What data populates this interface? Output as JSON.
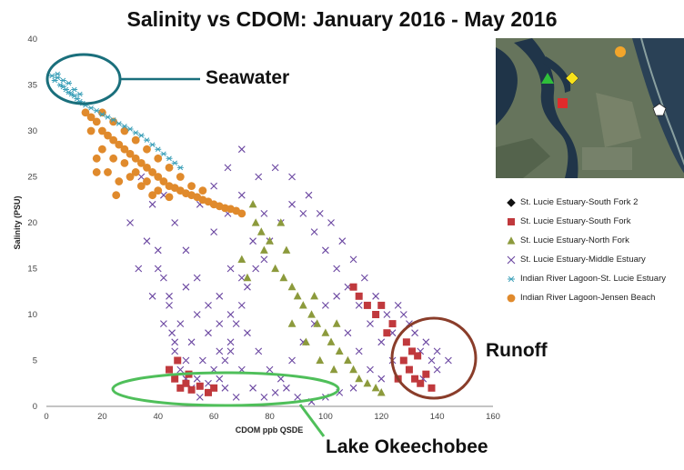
{
  "chart_data": {
    "type": "scatter",
    "title": "Salinity vs CDOM: January 2016 - May 2016",
    "xlabel": "CDOM ppb QSDE",
    "ylabel": "Salinity (PSU)",
    "xlim": [
      0,
      160
    ],
    "ylim": [
      0,
      40
    ],
    "xticks": [
      "0",
      "20",
      "40",
      "60",
      "80",
      "100",
      "120",
      "140",
      "160"
    ],
    "yticks": [
      "0",
      "5",
      "10",
      "15",
      "20",
      "25",
      "30",
      "35",
      "40"
    ],
    "grid": false,
    "legend_position": "right",
    "series": [
      {
        "name": "St. Lucie Estuary-South Fork 2",
        "marker": "diamond",
        "color": "#111111",
        "points": []
      },
      {
        "name": "St. Lucie Estuary-South Fork",
        "marker": "square",
        "color": "#c0393d",
        "points": [
          [
            46,
            3
          ],
          [
            48,
            2
          ],
          [
            50,
            2.5
          ],
          [
            52,
            1.8
          ],
          [
            55,
            2.2
          ],
          [
            58,
            1.5
          ],
          [
            60,
            2
          ],
          [
            44,
            4
          ],
          [
            47,
            5
          ],
          [
            51,
            3.5
          ],
          [
            128,
            5
          ],
          [
            130,
            4
          ],
          [
            132,
            3
          ],
          [
            134,
            2.5
          ],
          [
            131,
            6
          ],
          [
            129,
            7
          ],
          [
            133,
            5.5
          ],
          [
            136,
            3.5
          ],
          [
            126,
            3
          ],
          [
            122,
            8
          ],
          [
            118,
            10
          ],
          [
            115,
            11
          ],
          [
            112,
            12
          ],
          [
            110,
            13
          ],
          [
            124,
            9
          ],
          [
            120,
            11
          ],
          [
            138,
            2
          ]
        ]
      },
      {
        "name": "St. Lucie Estuary-North Fork",
        "marker": "triangle",
        "color": "#8c9a3c",
        "points": [
          [
            75,
            20
          ],
          [
            80,
            18
          ],
          [
            78,
            17
          ],
          [
            82,
            15
          ],
          [
            85,
            14
          ],
          [
            88,
            13
          ],
          [
            90,
            12
          ],
          [
            92,
            11
          ],
          [
            95,
            10
          ],
          [
            97,
            9
          ],
          [
            100,
            8
          ],
          [
            102,
            7
          ],
          [
            105,
            6
          ],
          [
            108,
            5
          ],
          [
            110,
            4
          ],
          [
            112,
            3
          ],
          [
            115,
            2.5
          ],
          [
            118,
            2
          ],
          [
            120,
            1.5
          ],
          [
            70,
            16
          ],
          [
            72,
            14
          ],
          [
            88,
            9
          ],
          [
            93,
            7
          ],
          [
            98,
            5
          ],
          [
            103,
            4
          ],
          [
            86,
            17
          ],
          [
            84,
            20
          ],
          [
            77,
            19
          ],
          [
            74,
            22
          ],
          [
            96,
            12
          ],
          [
            104,
            9
          ]
        ]
      },
      {
        "name": "St. Lucie Estuary-Middle Estuary",
        "marker": "x",
        "color": "#6b47a1",
        "points": [
          [
            30,
            20
          ],
          [
            34,
            25
          ],
          [
            38,
            22
          ],
          [
            40,
            17
          ],
          [
            42,
            14
          ],
          [
            44,
            11
          ],
          [
            45,
            8
          ],
          [
            46,
            6
          ],
          [
            48,
            4
          ],
          [
            50,
            3
          ],
          [
            52,
            2
          ],
          [
            55,
            1
          ],
          [
            58,
            1.5
          ],
          [
            60,
            2
          ],
          [
            62,
            3
          ],
          [
            64,
            5
          ],
          [
            66,
            7
          ],
          [
            68,
            9
          ],
          [
            70,
            11
          ],
          [
            72,
            13
          ],
          [
            75,
            15
          ],
          [
            78,
            16
          ],
          [
            80,
            18
          ],
          [
            84,
            20
          ],
          [
            88,
            22
          ],
          [
            92,
            21
          ],
          [
            96,
            19
          ],
          [
            100,
            17
          ],
          [
            104,
            15
          ],
          [
            108,
            13
          ],
          [
            112,
            11
          ],
          [
            116,
            9
          ],
          [
            120,
            7
          ],
          [
            124,
            8
          ],
          [
            128,
            10
          ],
          [
            132,
            8
          ],
          [
            136,
            7
          ],
          [
            140,
            6
          ],
          [
            144,
            5
          ],
          [
            140,
            4
          ],
          [
            135,
            3
          ],
          [
            42,
            23
          ],
          [
            46,
            20
          ],
          [
            50,
            17
          ],
          [
            54,
            14
          ],
          [
            58,
            11
          ],
          [
            62,
            9
          ],
          [
            66,
            6
          ],
          [
            70,
            4
          ],
          [
            74,
            2
          ],
          [
            78,
            1
          ],
          [
            82,
            1.5
          ],
          [
            86,
            2
          ],
          [
            90,
            1
          ],
          [
            95,
            0.5
          ],
          [
            100,
            1
          ],
          [
            105,
            1.5
          ],
          [
            110,
            2
          ],
          [
            36,
            18
          ],
          [
            40,
            15
          ],
          [
            44,
            12
          ],
          [
            48,
            9
          ],
          [
            52,
            7
          ],
          [
            56,
            5
          ],
          [
            60,
            4
          ],
          [
            64,
            2
          ],
          [
            68,
            1
          ],
          [
            55,
            22
          ],
          [
            60,
            24
          ],
          [
            65,
            26
          ],
          [
            70,
            28
          ],
          [
            60,
            19
          ],
          [
            65,
            21
          ],
          [
            70,
            23
          ],
          [
            76,
            25
          ],
          [
            82,
            26
          ],
          [
            88,
            25
          ],
          [
            94,
            23
          ],
          [
            98,
            21
          ],
          [
            102,
            20
          ],
          [
            106,
            18
          ],
          [
            110,
            16
          ],
          [
            114,
            14
          ],
          [
            118,
            12
          ],
          [
            122,
            10
          ],
          [
            126,
            11
          ],
          [
            130,
            9
          ],
          [
            134,
            6
          ],
          [
            138,
            5
          ],
          [
            33,
            15
          ],
          [
            38,
            12
          ],
          [
            42,
            9
          ],
          [
            46,
            7
          ],
          [
            50,
            5
          ],
          [
            54,
            3
          ],
          [
            58,
            2.5
          ],
          [
            62,
            6
          ],
          [
            66,
            10
          ],
          [
            70,
            14
          ],
          [
            74,
            18
          ],
          [
            78,
            21
          ],
          [
            50,
            13
          ],
          [
            54,
            10
          ],
          [
            58,
            8
          ],
          [
            62,
            12
          ],
          [
            66,
            15
          ],
          [
            72,
            8
          ],
          [
            76,
            6
          ],
          [
            80,
            4
          ],
          [
            84,
            3
          ],
          [
            88,
            5
          ],
          [
            92,
            7
          ],
          [
            96,
            9
          ],
          [
            100,
            11
          ],
          [
            104,
            12
          ],
          [
            108,
            8
          ],
          [
            112,
            6
          ],
          [
            116,
            4
          ],
          [
            120,
            3
          ],
          [
            124,
            5
          ]
        ]
      },
      {
        "name": "Indian River Lagoon-St. Lucie Estuary",
        "marker": "asterisk",
        "color": "#3a9fb8",
        "points": [
          [
            2,
            36
          ],
          [
            3,
            35.5
          ],
          [
            4,
            35.8
          ],
          [
            5,
            35
          ],
          [
            6,
            34.8
          ],
          [
            7,
            34.5
          ],
          [
            8,
            34.2
          ],
          [
            9,
            34
          ],
          [
            10,
            33.8
          ],
          [
            11,
            33.5
          ],
          [
            12,
            33.2
          ],
          [
            13,
            33
          ],
          [
            14,
            32.8
          ],
          [
            16,
            32.5
          ],
          [
            18,
            32.2
          ],
          [
            20,
            31.8
          ],
          [
            22,
            31.5
          ],
          [
            24,
            31.2
          ],
          [
            26,
            30.8
          ],
          [
            28,
            30.5
          ],
          [
            30,
            30.2
          ],
          [
            32,
            29.8
          ],
          [
            34,
            29.5
          ],
          [
            36,
            29
          ],
          [
            38,
            28.5
          ],
          [
            40,
            28
          ],
          [
            42,
            27.5
          ],
          [
            44,
            27
          ],
          [
            46,
            26.5
          ],
          [
            48,
            26
          ],
          [
            4,
            36.2
          ],
          [
            6,
            35.5
          ],
          [
            8,
            35.2
          ],
          [
            10,
            34.5
          ],
          [
            12,
            34
          ]
        ]
      },
      {
        "name": "Indian River Lagoon-Jensen Beach",
        "marker": "circle",
        "color": "#e08a2c",
        "points": [
          [
            14,
            32
          ],
          [
            16,
            31.5
          ],
          [
            18,
            31
          ],
          [
            20,
            30
          ],
          [
            22,
            29.5
          ],
          [
            24,
            29
          ],
          [
            26,
            28.5
          ],
          [
            28,
            28
          ],
          [
            30,
            27.5
          ],
          [
            32,
            27
          ],
          [
            34,
            26.5
          ],
          [
            36,
            26
          ],
          [
            38,
            25.5
          ],
          [
            40,
            25
          ],
          [
            42,
            24.5
          ],
          [
            44,
            24
          ],
          [
            46,
            23.8
          ],
          [
            48,
            23.5
          ],
          [
            50,
            23.2
          ],
          [
            52,
            23
          ],
          [
            54,
            22.8
          ],
          [
            56,
            22.5
          ],
          [
            58,
            22.3
          ],
          [
            60,
            22
          ],
          [
            62,
            21.8
          ],
          [
            64,
            21.6
          ],
          [
            66,
            21.5
          ],
          [
            68,
            21.3
          ],
          [
            70,
            21
          ],
          [
            20,
            28
          ],
          [
            24,
            27
          ],
          [
            28,
            26.5
          ],
          [
            32,
            25.5
          ],
          [
            36,
            24.5
          ],
          [
            40,
            23.5
          ],
          [
            44,
            22.8
          ],
          [
            18,
            27
          ],
          [
            22,
            25.5
          ],
          [
            26,
            24.5
          ],
          [
            30,
            25
          ],
          [
            34,
            24
          ],
          [
            38,
            23
          ],
          [
            16,
            30
          ],
          [
            20,
            32
          ],
          [
            24,
            31
          ],
          [
            28,
            30
          ],
          [
            32,
            29
          ],
          [
            36,
            28
          ],
          [
            40,
            27
          ],
          [
            44,
            26
          ],
          [
            48,
            25
          ],
          [
            52,
            24
          ],
          [
            56,
            23.5
          ],
          [
            25,
            23
          ],
          [
            18,
            25.5
          ]
        ]
      }
    ],
    "annotations": [
      "Seawater",
      "Runoff",
      "Lake Okeechobee"
    ]
  },
  "annotations": {
    "seawater": "Seawater",
    "runoff": "Runoff",
    "lake": "Lake Okeechobee"
  },
  "map": {
    "description_colors": {
      "water": "#1e3447",
      "land": "#6e7a63"
    }
  }
}
